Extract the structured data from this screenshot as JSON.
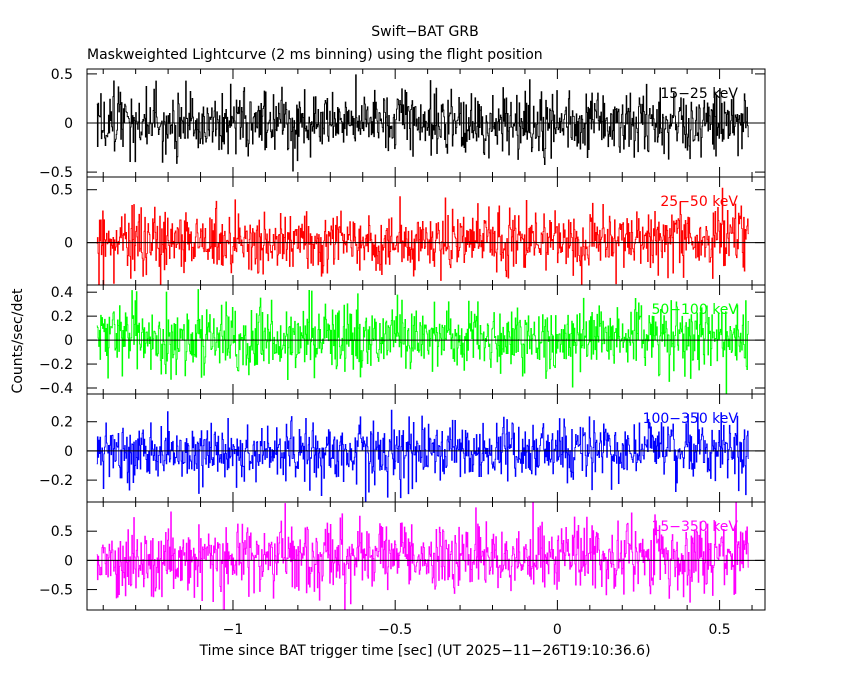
{
  "chart_data": {
    "type": "line",
    "title": "Swift−BAT GRB",
    "subtitle": "Maskweighted Lightcurve (2 ms binning) using the flight position",
    "xlabel": "Time since BAT trigger time [sec] (UT 2025−11−26T19:10:36.6)",
    "ylabel": "Counts/sec/det",
    "xlim": [
      -1.45,
      0.64
    ],
    "xticks": [
      -1,
      -0.5,
      0,
      0.5
    ],
    "xtick_labels": [
      "−1",
      "−0.5",
      "0",
      "0.5"
    ],
    "data_range": [
      -1.42,
      0.59
    ],
    "bin_width_s": 0.002,
    "panels": [
      {
        "name": "15−25 keV",
        "label": "15−25 keV",
        "color": "#000000",
        "ylim": [
          -0.55,
          0.55
        ],
        "yticks": [
          -0.5,
          0,
          0.5
        ],
        "ytick_labels": [
          "−0.5",
          "0",
          "0.5"
        ],
        "amplitude": 0.16,
        "trend": 0.0
      },
      {
        "name": "25−50 keV",
        "label": "25−50 keV",
        "color": "#ff0000",
        "ylim": [
          -0.4,
          0.62
        ],
        "yticks": [
          0,
          0.5
        ],
        "ytick_labels": [
          "0",
          "0.5"
        ],
        "amplitude": 0.14,
        "trend": 0.05
      },
      {
        "name": "50−100 keV",
        "label": "50−100 keV",
        "color": "#00ff00",
        "ylim": [
          -0.45,
          0.46
        ],
        "yticks": [
          -0.4,
          -0.2,
          0,
          0.2,
          0.4
        ],
        "ytick_labels": [
          "−0.4",
          "−0.2",
          "0",
          "0.2",
          "0.4"
        ],
        "amplitude": 0.14,
        "trend": 0.02
      },
      {
        "name": "100−350 keV",
        "label": "100−350 keV",
        "color": "#0000ff",
        "ylim": [
          -0.35,
          0.39
        ],
        "yticks": [
          -0.2,
          0,
          0.2
        ],
        "ytick_labels": [
          "−0.2",
          "0",
          "0.2"
        ],
        "amplitude": 0.1,
        "trend": 0.0
      },
      {
        "name": "15−350 keV",
        "label": "15−350 keV",
        "color": "#ff00ff",
        "ylim": [
          -0.85,
          1.0
        ],
        "yticks": [
          -0.5,
          0,
          0.5
        ],
        "ytick_labels": [
          "−0.5",
          "0",
          "0.5"
        ],
        "amplitude": 0.3,
        "trend": 0.1
      }
    ]
  }
}
